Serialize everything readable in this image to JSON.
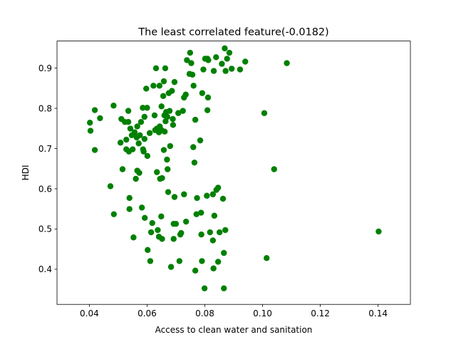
{
  "chart_data": {
    "type": "scatter",
    "title": "The least correlated feature(-0.0182)",
    "xlabel": "Access to clean water and sanitation",
    "ylabel": "HDI",
    "xlim": [
      0.0288,
      0.1512
    ],
    "ylim": [
      0.3127,
      0.9673
    ],
    "xticks": [
      0.04,
      0.06,
      0.08,
      0.1,
      0.12,
      0.14
    ],
    "xtick_labels": [
      "0.04",
      "0.06",
      "0.08",
      "0.10",
      "0.12",
      "0.14"
    ],
    "yticks": [
      0.4,
      0.5,
      0.6,
      0.7,
      0.8,
      0.9
    ],
    "ytick_labels": [
      "0.4",
      "0.5",
      "0.6",
      "0.7",
      "0.8",
      "0.9"
    ],
    "grid": false,
    "marker_color": "#008000",
    "points": [
      [
        0.0402,
        0.7644
      ],
      [
        0.0404,
        0.7442
      ],
      [
        0.0419,
        0.7956
      ],
      [
        0.0419,
        0.6964
      ],
      [
        0.0437,
        0.7754
      ],
      [
        0.0473,
        0.6064
      ],
      [
        0.0484,
        0.8068
      ],
      [
        0.0485,
        0.5368
      ],
      [
        0.0508,
        0.7147
      ],
      [
        0.0511,
        0.7735
      ],
      [
        0.0515,
        0.6487
      ],
      [
        0.0523,
        0.7662
      ],
      [
        0.0528,
        0.7221
      ],
      [
        0.0528,
        0.6982
      ],
      [
        0.0535,
        0.7937
      ],
      [
        0.0535,
        0.7662
      ],
      [
        0.0537,
        0.6927
      ],
      [
        0.0539,
        0.5772
      ],
      [
        0.0539,
        0.5497
      ],
      [
        0.0542,
        0.7496
      ],
      [
        0.0547,
        0.7331
      ],
      [
        0.055,
        0.6982
      ],
      [
        0.0553,
        0.4791
      ],
      [
        0.0557,
        0.7404
      ],
      [
        0.0561,
        0.6249
      ],
      [
        0.0564,
        0.7276
      ],
      [
        0.0566,
        0.7551
      ],
      [
        0.0566,
        0.6451
      ],
      [
        0.0571,
        0.7129
      ],
      [
        0.0573,
        0.6396
      ],
      [
        0.0575,
        0.7331
      ],
      [
        0.0579,
        0.7661
      ],
      [
        0.0582,
        0.5533
      ],
      [
        0.0585,
        0.8013
      ],
      [
        0.0586,
        0.6982
      ],
      [
        0.0588,
        0.6927
      ],
      [
        0.0591,
        0.7789
      ],
      [
        0.0591,
        0.7239
      ],
      [
        0.0592,
        0.5277
      ],
      [
        0.0597,
        0.8489
      ],
      [
        0.06,
        0.8013
      ],
      [
        0.0601,
        0.6817
      ],
      [
        0.0602,
        0.4479
      ],
      [
        0.0609,
        0.7386
      ],
      [
        0.0611,
        0.4204
      ],
      [
        0.0614,
        0.4919
      ],
      [
        0.0618,
        0.5148
      ],
      [
        0.0622,
        0.8562
      ],
      [
        0.0626,
        0.7826
      ],
      [
        0.0628,
        0.7459
      ],
      [
        0.0631,
        0.8996
      ],
      [
        0.0634,
        0.7496
      ],
      [
        0.0634,
        0.6414
      ],
      [
        0.0637,
        0.4974
      ],
      [
        0.0641,
        0.4809
      ],
      [
        0.0641,
        0.7404
      ],
      [
        0.0643,
        0.8562
      ],
      [
        0.0644,
        0.7551
      ],
      [
        0.0645,
        0.6249
      ],
      [
        0.0649,
        0.5313
      ],
      [
        0.065,
        0.8049
      ],
      [
        0.065,
        0.7459
      ],
      [
        0.0652,
        0.6267
      ],
      [
        0.0652,
        0.4754
      ],
      [
        0.0656,
        0.8306
      ],
      [
        0.0658,
        0.8672
      ],
      [
        0.0658,
        0.6964
      ],
      [
        0.066,
        0.7826
      ],
      [
        0.0661,
        0.7422
      ],
      [
        0.0663,
        0.8996
      ],
      [
        0.0664,
        0.7679
      ],
      [
        0.0666,
        0.7909
      ],
      [
        0.0669,
        0.6726
      ],
      [
        0.067,
        0.7789
      ],
      [
        0.0671,
        0.6487
      ],
      [
        0.0673,
        0.5919
      ],
      [
        0.0675,
        0.8379
      ],
      [
        0.0678,
        0.7936
      ],
      [
        0.068,
        0.7062
      ],
      [
        0.0683,
        0.4058
      ],
      [
        0.0686,
        0.8434
      ],
      [
        0.0689,
        0.7734
      ],
      [
        0.069,
        0.7588
      ],
      [
        0.0692,
        0.5129
      ],
      [
        0.0692,
        0.4754
      ],
      [
        0.0695,
        0.8654
      ],
      [
        0.0695,
        0.5796
      ],
      [
        0.07,
        0.5129
      ],
      [
        0.0708,
        0.7882
      ],
      [
        0.0712,
        0.4204
      ],
      [
        0.0715,
        0.4864
      ],
      [
        0.0718,
        0.4901
      ],
      [
        0.0724,
        0.7937
      ],
      [
        0.0728,
        0.8269
      ],
      [
        0.0728,
        0.5863
      ],
      [
        0.0734,
        0.8342
      ],
      [
        0.0735,
        0.5184
      ],
      [
        0.0738,
        0.9198
      ],
      [
        0.0747,
        0.8856
      ],
      [
        0.0749,
        0.9381
      ],
      [
        0.0753,
        0.9124
      ],
      [
        0.0757,
        0.8837
      ],
      [
        0.076,
        0.7036
      ],
      [
        0.0761,
        0.8562
      ],
      [
        0.0764,
        0.6652
      ],
      [
        0.0767,
        0.7716
      ],
      [
        0.0767,
        0.3966
      ],
      [
        0.0771,
        0.5368
      ],
      [
        0.0773,
        0.5771
      ],
      [
        0.0784,
        0.7202
      ],
      [
        0.0787,
        0.5405
      ],
      [
        0.0788,
        0.4864
      ],
      [
        0.079,
        0.4204
      ],
      [
        0.0791,
        0.8379
      ],
      [
        0.0795,
        0.8966
      ],
      [
        0.0799,
        0.3526
      ],
      [
        0.0801,
        0.9234
      ],
      [
        0.0807,
        0.5827
      ],
      [
        0.0809,
        0.7954
      ],
      [
        0.0809,
        0.9234
      ],
      [
        0.0811,
        0.8269
      ],
      [
        0.0812,
        0.9198
      ],
      [
        0.0818,
        0.4919
      ],
      [
        0.0828,
        0.5863
      ],
      [
        0.0828,
        0.4717
      ],
      [
        0.083,
        0.4021
      ],
      [
        0.0831,
        0.8929
      ],
      [
        0.0833,
        0.5331
      ],
      [
        0.0839,
        0.9271
      ],
      [
        0.084,
        0.5973
      ],
      [
        0.0846,
        0.6028
      ],
      [
        0.0846,
        0.4186
      ],
      [
        0.0851,
        0.4919
      ],
      [
        0.0859,
        0.9106
      ],
      [
        0.0863,
        0.5753
      ],
      [
        0.0866,
        0.4406
      ],
      [
        0.0866,
        0.3526
      ],
      [
        0.0869,
        0.9491
      ],
      [
        0.0871,
        0.4974
      ],
      [
        0.0872,
        0.8929
      ],
      [
        0.0877,
        0.9234
      ],
      [
        0.0885,
        0.9381
      ],
      [
        0.0893,
        0.8984
      ],
      [
        0.0922,
        0.8966
      ],
      [
        0.094,
        0.9161
      ],
      [
        0.1006,
        0.7881
      ],
      [
        0.1014,
        0.4278
      ],
      [
        0.104,
        0.6487
      ],
      [
        0.1084,
        0.9124
      ],
      [
        0.1402,
        0.4938
      ]
    ]
  }
}
